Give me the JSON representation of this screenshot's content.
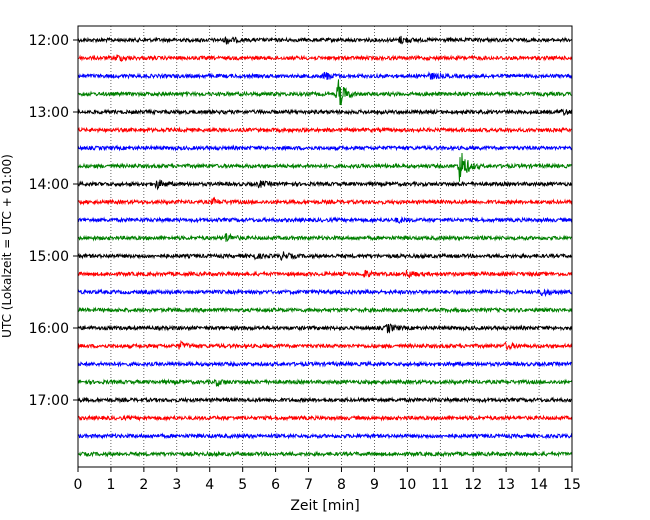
{
  "chart_data": {
    "type": "line",
    "subtype": "seismogram-helicorder",
    "xlabel": "Zeit  [min]",
    "ylabel": "UTC (Lokalzeit = UTC + 01:00)",
    "xlim": [
      0,
      15
    ],
    "x_ticks": [
      0,
      1,
      2,
      3,
      4,
      5,
      6,
      7,
      8,
      9,
      10,
      11,
      12,
      13,
      14,
      15
    ],
    "grid": "vertical-dotted",
    "y_tick_labels": [
      "12:00",
      "13:00",
      "14:00",
      "15:00",
      "16:00",
      "17:00"
    ],
    "trace_interval_minutes": 15,
    "trace_colors": [
      "#000000",
      "#ff0000",
      "#0000ff",
      "#008000"
    ],
    "traces": [
      {
        "start": "12:00",
        "events": [
          {
            "t": 4.5,
            "amp": 0.5
          },
          {
            "t": 9.8,
            "amp": 0.5
          }
        ]
      },
      {
        "start": "12:15",
        "events": [
          {
            "t": 1.2,
            "amp": 0.4
          }
        ]
      },
      {
        "start": "12:30",
        "events": [
          {
            "t": 7.5,
            "amp": 0.6
          },
          {
            "t": 10.7,
            "amp": 0.4
          }
        ]
      },
      {
        "start": "12:45",
        "events": [
          {
            "t": 7.9,
            "amp": 2.2
          }
        ]
      },
      {
        "start": "13:00",
        "events": [
          {
            "t": 14.7,
            "amp": 0.4
          }
        ]
      },
      {
        "start": "13:15",
        "events": []
      },
      {
        "start": "13:30",
        "events": []
      },
      {
        "start": "13:45",
        "events": [
          {
            "t": 11.6,
            "amp": 2.6
          }
        ]
      },
      {
        "start": "14:00",
        "events": [
          {
            "t": 2.4,
            "amp": 0.6
          },
          {
            "t": 5.5,
            "amp": 0.4
          }
        ]
      },
      {
        "start": "14:15",
        "events": [
          {
            "t": 4.1,
            "amp": 0.4
          }
        ]
      },
      {
        "start": "14:30",
        "events": [
          {
            "t": 9.7,
            "amp": 0.3
          }
        ]
      },
      {
        "start": "14:45",
        "events": [
          {
            "t": 4.5,
            "amp": 0.6
          }
        ]
      },
      {
        "start": "15:00",
        "events": [
          {
            "t": 5.3,
            "amp": 0.4
          },
          {
            "t": 6.2,
            "amp": 0.5
          }
        ]
      },
      {
        "start": "15:15",
        "events": [
          {
            "t": 8.7,
            "amp": 0.4
          },
          {
            "t": 10.0,
            "amp": 0.5
          }
        ]
      },
      {
        "start": "15:30",
        "events": [
          {
            "t": 14.1,
            "amp": 0.5
          }
        ]
      },
      {
        "start": "15:45",
        "events": []
      },
      {
        "start": "16:00",
        "events": [
          {
            "t": 9.4,
            "amp": 0.6
          }
        ]
      },
      {
        "start": "16:15",
        "events": [
          {
            "t": 3.1,
            "amp": 0.5
          },
          {
            "t": 13.0,
            "amp": 0.4
          }
        ]
      },
      {
        "start": "16:30",
        "events": []
      },
      {
        "start": "16:45",
        "events": [
          {
            "t": 4.2,
            "amp": 0.4
          }
        ]
      },
      {
        "start": "17:00",
        "events": []
      },
      {
        "start": "17:15",
        "events": []
      },
      {
        "start": "17:30",
        "events": []
      },
      {
        "start": "17:45",
        "events": []
      }
    ]
  }
}
